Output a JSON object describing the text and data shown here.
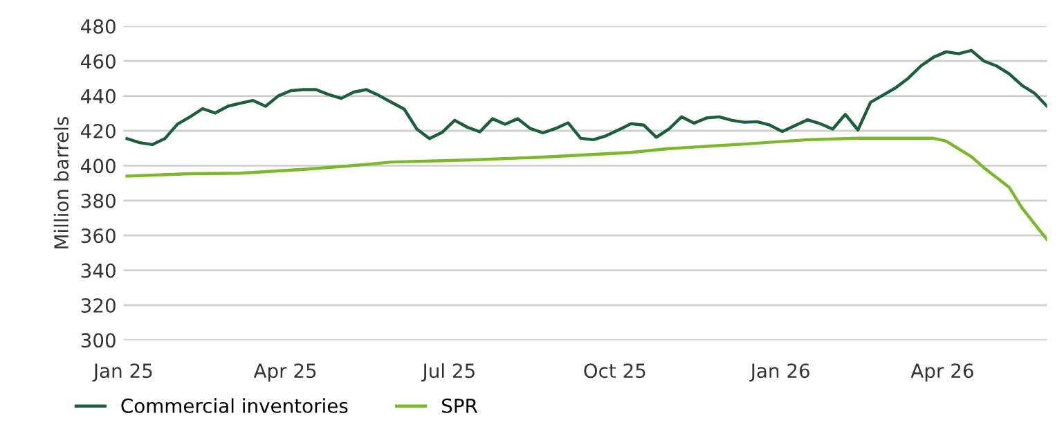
{
  "chart_data": {
    "type": "line",
    "ylabel": "Million barrels",
    "x": [
      "2025-01-03",
      "2025-01-10",
      "2025-01-17",
      "2025-01-24",
      "2025-01-31",
      "2025-02-07",
      "2025-02-14",
      "2025-02-21",
      "2025-02-28",
      "2025-03-07",
      "2025-03-14",
      "2025-03-21",
      "2025-03-28",
      "2025-04-04",
      "2025-04-11",
      "2025-04-18",
      "2025-04-25",
      "2025-05-02",
      "2025-05-09",
      "2025-05-16",
      "2025-05-23",
      "2025-05-30",
      "2025-06-06",
      "2025-06-13",
      "2025-06-20",
      "2025-06-27",
      "2025-07-04",
      "2025-07-11",
      "2025-07-18",
      "2025-07-25",
      "2025-08-01",
      "2025-08-08",
      "2025-08-15",
      "2025-08-22",
      "2025-08-29",
      "2025-09-05",
      "2025-09-12",
      "2025-09-19",
      "2025-09-26",
      "2025-10-03",
      "2025-10-10",
      "2025-10-17",
      "2025-10-24",
      "2025-10-31",
      "2025-11-07",
      "2025-11-14",
      "2025-11-21",
      "2025-11-28",
      "2025-12-05",
      "2025-12-12",
      "2025-12-19",
      "2025-12-26",
      "2026-01-02",
      "2026-01-09",
      "2026-01-16",
      "2026-01-23",
      "2026-01-30",
      "2026-02-06",
      "2026-02-13",
      "2026-02-20",
      "2026-02-27",
      "2026-03-06",
      "2026-03-13",
      "2026-03-20",
      "2026-03-27",
      "2026-04-03",
      "2026-04-10",
      "2026-04-17",
      "2026-04-24",
      "2026-05-01",
      "2026-05-08",
      "2026-05-15",
      "2026-05-22",
      "2026-05-29"
    ],
    "series": [
      {
        "name": "Commercial inventories",
        "color": "#1d5e3c",
        "values": [
          415.5,
          413.2,
          412.1,
          415.5,
          423.8,
          428,
          432.7,
          430.2,
          434.1,
          435.8,
          437.4,
          434.1,
          440,
          443,
          443.6,
          443.6,
          440.8,
          438.6,
          442.2,
          443.6,
          440.2,
          436.3,
          432.4,
          421,
          415.5,
          419.1,
          426,
          422.1,
          419.4,
          426.9,
          423.8,
          426.9,
          421.3,
          418.8,
          421.3,
          424.6,
          415.7,
          414.9,
          417.1,
          420.5,
          424.1,
          423.3,
          416.3,
          421,
          428,
          424.4,
          427.4,
          428,
          426,
          424.9,
          425.2,
          423.3,
          419.6,
          423,
          426.3,
          424.1,
          421,
          429.4,
          420.5,
          436.3,
          440.5,
          444.7,
          450.2,
          457.2,
          462.2,
          465.3,
          464.2,
          466.1,
          460,
          457.2,
          452.7,
          446.1,
          441.6,
          434.1
        ]
      },
      {
        "name": "SPR",
        "color": "#7ab929",
        "x": [
          "2025-01-03",
          "2025-02-07",
          "2025-03-07",
          "2025-04-11",
          "2025-04-25",
          "2025-05-16",
          "2025-05-30",
          "2025-07-11",
          "2025-08-22",
          "2025-10-10",
          "2025-10-31",
          "2025-12-12",
          "2026-01-16",
          "2026-02-13",
          "2026-03-27",
          "2026-04-03",
          "2026-04-17",
          "2026-04-24",
          "2026-05-01",
          "2026-05-08",
          "2026-05-15",
          "2026-05-22",
          "2026-05-29"
        ],
        "values": [
          394.0,
          395.4,
          395.7,
          397.9,
          399,
          400.7,
          402.1,
          403.2,
          404.9,
          407.6,
          409.8,
          412.4,
          414.9,
          415.7,
          415.7,
          414.1,
          405.2,
          398.8,
          393.2,
          387.6,
          376,
          366.8,
          357.6
        ]
      }
    ],
    "xlim": [
      "2025-01-01",
      "2026-05-29"
    ],
    "xticks": [
      {
        "value": "2025-01-01",
        "label": "Jan 25"
      },
      {
        "value": "2025-04-01",
        "label": "Apr 25"
      },
      {
        "value": "2025-07-01",
        "label": "Jul 25"
      },
      {
        "value": "2025-10-01",
        "label": "Oct 25"
      },
      {
        "value": "2026-01-01",
        "label": "Jan 26"
      },
      {
        "value": "2026-04-01",
        "label": "Apr 26"
      }
    ],
    "ylim": [
      300,
      480
    ],
    "yticks": [
      300,
      320,
      340,
      360,
      380,
      400,
      420,
      440,
      460,
      480
    ],
    "grid": "y",
    "legend": "bottom left",
    "marker": "none",
    "line_style": "solid"
  }
}
